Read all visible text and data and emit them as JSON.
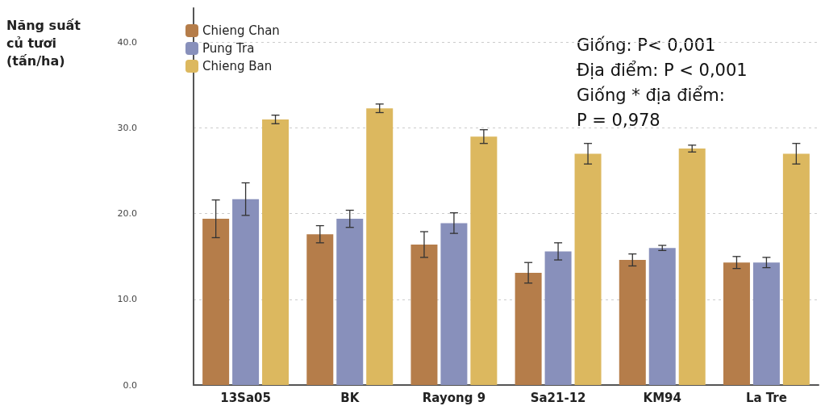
{
  "chart_data": {
    "type": "bar",
    "ylabel": "Năng suất\ncủ tươi\n(tấn/ha)",
    "categories": [
      "13Sa05",
      "BK",
      "Rayong 9",
      "Sa21-12",
      "KM94",
      "La Tre"
    ],
    "series": [
      {
        "name": "Chieng Chan",
        "color": "#b57d4a",
        "values": [
          19.4,
          17.6,
          16.4,
          13.1,
          14.6,
          14.3
        ],
        "errors": [
          2.2,
          1.0,
          1.5,
          1.2,
          0.7,
          0.7
        ]
      },
      {
        "name": "Pung Tra",
        "color": "#8890bb",
        "values": [
          21.7,
          19.4,
          18.9,
          15.6,
          16.0,
          14.3
        ],
        "errors": [
          1.9,
          1.0,
          1.2,
          1.0,
          0.3,
          0.6
        ]
      },
      {
        "name": "Chieng Ban",
        "color": "#dcb85f",
        "values": [
          31.0,
          32.3,
          29.0,
          27.0,
          27.6,
          27.0
        ],
        "errors": [
          0.5,
          0.5,
          0.8,
          1.2,
          0.4,
          1.2
        ]
      }
    ],
    "ylim": [
      0,
      44
    ],
    "yticks": [
      {
        "value": 0,
        "label": "0.0"
      },
      {
        "value": 10,
        "label": "10.0"
      },
      {
        "value": 20,
        "label": "20.0"
      },
      {
        "value": 30,
        "label": "30.0"
      },
      {
        "value": 40,
        "label": "40.0"
      }
    ],
    "grid": "y",
    "legend": "top left",
    "annotations": [
      "Giống: P< 0,001",
      "Địa điểm: P < 0,001",
      "Giống * địa điểm:",
      "P = 0,978"
    ]
  }
}
